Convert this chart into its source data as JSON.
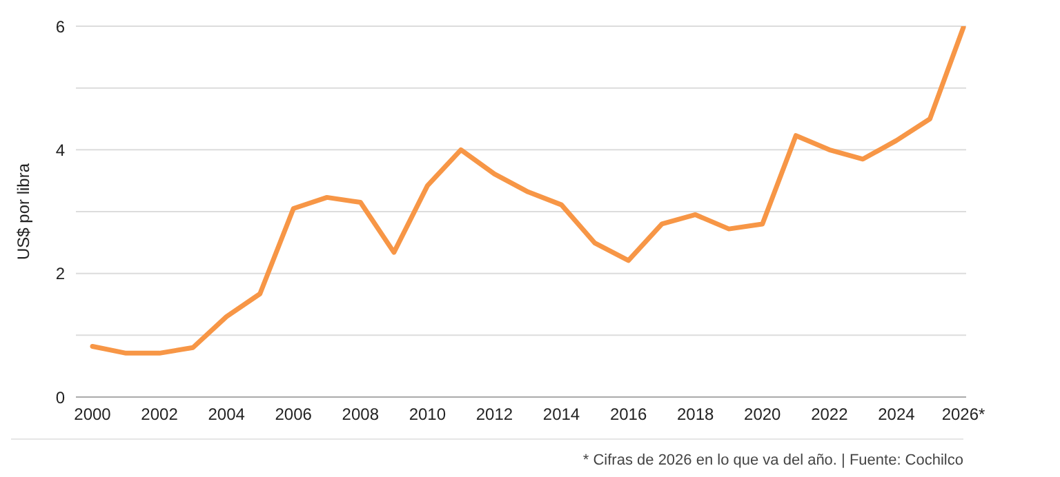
{
  "chart_data": {
    "type": "line",
    "ylabel": "US$ por libra",
    "categories": [
      "2000",
      null,
      "2002",
      null,
      "2004",
      null,
      "2006",
      null,
      "2008",
      null,
      "2010",
      null,
      "2012",
      null,
      "2014",
      null,
      "2016",
      null,
      "2018",
      null,
      "2020",
      null,
      "2022",
      null,
      "2024",
      null,
      "2026*"
    ],
    "series": [
      {
        "color": "#f79646",
        "values": [
          0.82,
          0.71,
          0.71,
          0.8,
          1.3,
          1.67,
          3.05,
          3.23,
          3.15,
          2.34,
          3.42,
          4.0,
          3.61,
          3.32,
          3.11,
          2.49,
          2.21,
          2.8,
          2.95,
          2.72,
          2.8,
          4.23,
          4.0,
          3.85,
          4.15,
          4.5,
          5.98
        ]
      }
    ],
    "ylim": [
      0,
      6
    ],
    "yticks": [
      0,
      {
        "value": 1,
        "label": null
      },
      2,
      {
        "value": 3,
        "label": null
      },
      4,
      {
        "value": 5,
        "label": null
      },
      6
    ],
    "grid": "y",
    "legend": false,
    "marker": "none",
    "line_style": "solid",
    "annotations": [
      "* Cifras de 2026 en lo que va del año. | Fuente: Cochilco"
    ]
  }
}
